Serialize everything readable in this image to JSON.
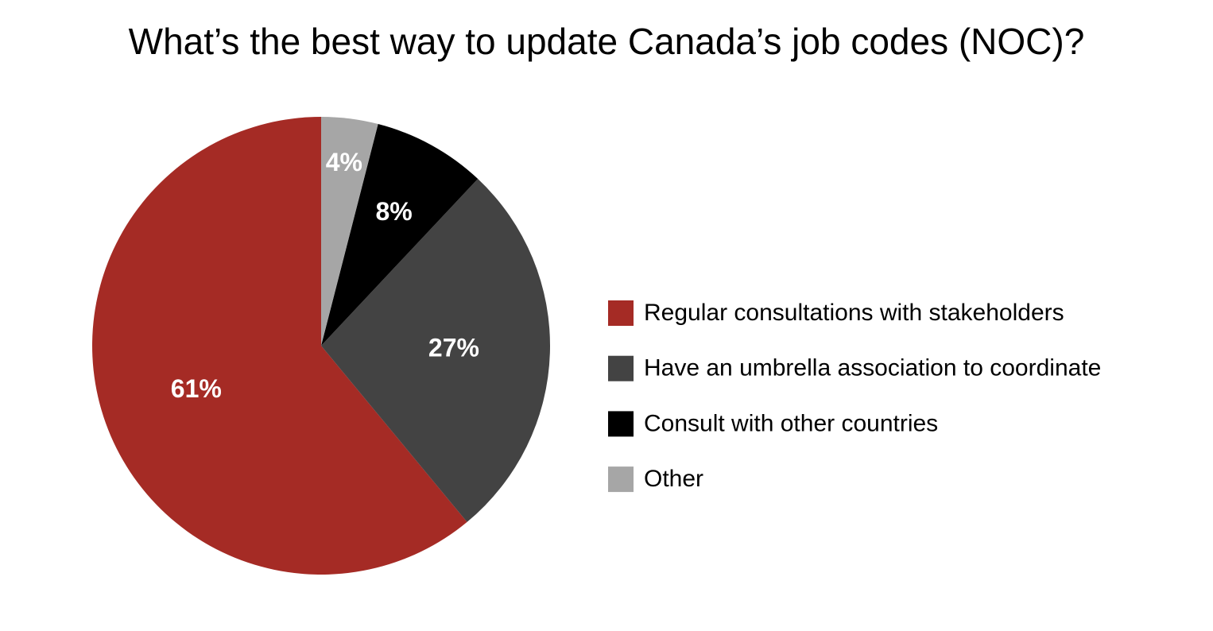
{
  "chart_data": {
    "type": "pie",
    "title": "What’s the best way to update Canada’s job codes (NOC)?",
    "categories": [
      "Regular consultations with stakeholders",
      "Have an umbrella association to coordinate",
      "Consult with other countries",
      "Other"
    ],
    "values": [
      61,
      27,
      8,
      4
    ],
    "value_labels": [
      "61%",
      "27%",
      "8%",
      "4%"
    ],
    "colors": [
      "#a52b25",
      "#434343",
      "#000000",
      "#a6a6a6"
    ],
    "direction": "counterclockwise",
    "legend": "right"
  }
}
